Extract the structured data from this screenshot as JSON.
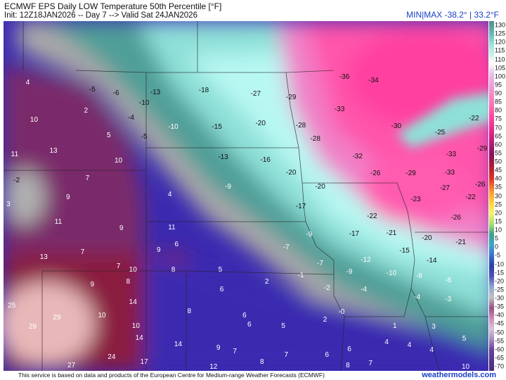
{
  "header": {
    "title": "ECMWF EPS Daily LOW Temperature 50th Percentile [°F]",
    "subtitle": "Init: 12Z18JAN2026 -- Day 7 --> Valid Sat 24JAN2026",
    "minmax": "MIN|MAX -38.2° | 33.2°F"
  },
  "footer": {
    "credit": "This service is based on data and products of the European Centre for Medium-range Weather Forecasts (ECMWF)",
    "site": "weathermodels.com"
  },
  "colorbar": {
    "ticks": [
      "130",
      "125",
      "120",
      "115",
      "110",
      "105",
      "100",
      "95",
      "90",
      "85",
      "80",
      "75",
      "70",
      "65",
      "60",
      "55",
      "50",
      "45",
      "40",
      "35",
      "30",
      "25",
      "20",
      "15",
      "10",
      "5",
      "0",
      "-5",
      "-10",
      "-15",
      "-20",
      "-25",
      "-30",
      "-35",
      "-40",
      "-45",
      "-50",
      "-55",
      "-60",
      "-65",
      "-70"
    ]
  },
  "colors": {
    "very_warm": "#f4d4d0",
    "warm": "#8a1a40",
    "mild": "#5a2a7a",
    "near_zero": "#3a2ab0",
    "cool": "#b0b0b0",
    "cold": "#60c0b8",
    "very_cold": "#a0f0ec",
    "frigid": "#ff60b0",
    "extreme": "#ff40a0"
  },
  "map_labels": [
    {
      "t": "4",
      "lx": 0.05,
      "ly": 0.178
    },
    {
      "t": "-5",
      "lx": 0.183,
      "ly": 0.197
    },
    {
      "t": "-6",
      "lx": 0.232,
      "ly": 0.207
    },
    {
      "t": "-13",
      "lx": 0.313,
      "ly": 0.205
    },
    {
      "t": "-18",
      "lx": 0.413,
      "ly": 0.199
    },
    {
      "t": "-27",
      "lx": 0.52,
      "ly": 0.209
    },
    {
      "t": "-29",
      "lx": 0.593,
      "ly": 0.219
    },
    {
      "t": "-36",
      "lx": 0.703,
      "ly": 0.161
    },
    {
      "t": "-34",
      "lx": 0.763,
      "ly": 0.171
    },
    {
      "t": "-10",
      "lx": 0.29,
      "ly": 0.236
    },
    {
      "t": "2",
      "lx": 0.17,
      "ly": 0.257
    },
    {
      "t": "-4",
      "lx": 0.263,
      "ly": 0.277
    },
    {
      "t": "10",
      "lx": 0.063,
      "ly": 0.284
    },
    {
      "t": "-33",
      "lx": 0.693,
      "ly": 0.254
    },
    {
      "t": "-10",
      "lx": 0.35,
      "ly": 0.303
    },
    {
      "t": "-15",
      "lx": 0.44,
      "ly": 0.303
    },
    {
      "t": "-20",
      "lx": 0.53,
      "ly": 0.293
    },
    {
      "t": "-28",
      "lx": 0.613,
      "ly": 0.299
    },
    {
      "t": "-30",
      "lx": 0.81,
      "ly": 0.302
    },
    {
      "t": "-25",
      "lx": 0.9,
      "ly": 0.32
    },
    {
      "t": "-22",
      "lx": 0.97,
      "ly": 0.28
    },
    {
      "t": "5",
      "lx": 0.217,
      "ly": 0.328
    },
    {
      "t": "-5",
      "lx": 0.29,
      "ly": 0.331
    },
    {
      "t": "-28",
      "lx": 0.643,
      "ly": 0.338
    },
    {
      "t": "11",
      "lx": 0.023,
      "ly": 0.383
    },
    {
      "t": "13",
      "lx": 0.103,
      "ly": 0.373
    },
    {
      "t": "10",
      "lx": 0.237,
      "ly": 0.401
    },
    {
      "t": "-13",
      "lx": 0.453,
      "ly": 0.391
    },
    {
      "t": "-16",
      "lx": 0.54,
      "ly": 0.399
    },
    {
      "t": "-32",
      "lx": 0.73,
      "ly": 0.389
    },
    {
      "t": "-33",
      "lx": 0.923,
      "ly": 0.383
    },
    {
      "t": "-29",
      "lx": 0.987,
      "ly": 0.366
    },
    {
      "t": "-2",
      "lx": 0.027,
      "ly": 0.457
    },
    {
      "t": "7",
      "lx": 0.173,
      "ly": 0.45
    },
    {
      "t": "-20",
      "lx": 0.593,
      "ly": 0.434
    },
    {
      "t": "-26",
      "lx": 0.767,
      "ly": 0.436
    },
    {
      "t": "-29",
      "lx": 0.84,
      "ly": 0.436
    },
    {
      "t": "-33",
      "lx": 0.92,
      "ly": 0.434
    },
    {
      "t": "-26",
      "lx": 0.983,
      "ly": 0.469
    },
    {
      "t": "9",
      "lx": 0.133,
      "ly": 0.506
    },
    {
      "t": "-9",
      "lx": 0.463,
      "ly": 0.474
    },
    {
      "t": "-20",
      "lx": 0.653,
      "ly": 0.474
    },
    {
      "t": "-27",
      "lx": 0.91,
      "ly": 0.479
    },
    {
      "t": "4",
      "lx": 0.343,
      "ly": 0.497
    },
    {
      "t": "3",
      "lx": 0.01,
      "ly": 0.526
    },
    {
      "t": "-22",
      "lx": 0.963,
      "ly": 0.505
    },
    {
      "t": "-23",
      "lx": 0.85,
      "ly": 0.512
    },
    {
      "t": "-17",
      "lx": 0.613,
      "ly": 0.531
    },
    {
      "t": "11",
      "lx": 0.113,
      "ly": 0.575
    },
    {
      "t": "9",
      "lx": 0.243,
      "ly": 0.594
    },
    {
      "t": "11",
      "lx": 0.347,
      "ly": 0.591
    },
    {
      "t": "-22",
      "lx": 0.76,
      "ly": 0.559
    },
    {
      "t": "-26",
      "lx": 0.933,
      "ly": 0.563
    },
    {
      "t": "-17",
      "lx": 0.723,
      "ly": 0.61
    },
    {
      "t": "-21",
      "lx": 0.8,
      "ly": 0.608
    },
    {
      "t": "-20",
      "lx": 0.873,
      "ly": 0.622
    },
    {
      "t": "-21",
      "lx": 0.943,
      "ly": 0.634
    },
    {
      "t": "9",
      "lx": 0.32,
      "ly": 0.656
    },
    {
      "t": "6",
      "lx": 0.357,
      "ly": 0.64
    },
    {
      "t": "7",
      "lx": 0.163,
      "ly": 0.662
    },
    {
      "t": "13",
      "lx": 0.083,
      "ly": 0.676
    },
    {
      "t": "-7",
      "lx": 0.583,
      "ly": 0.648
    },
    {
      "t": "-9",
      "lx": 0.63,
      "ly": 0.612
    },
    {
      "t": "-15",
      "lx": 0.827,
      "ly": 0.658
    },
    {
      "t": "-12",
      "lx": 0.747,
      "ly": 0.684
    },
    {
      "t": "-14",
      "lx": 0.883,
      "ly": 0.686
    },
    {
      "t": "7",
      "lx": 0.237,
      "ly": 0.702
    },
    {
      "t": "10",
      "lx": 0.267,
      "ly": 0.712
    },
    {
      "t": "8",
      "lx": 0.35,
      "ly": 0.712
    },
    {
      "t": "5",
      "lx": 0.447,
      "ly": 0.712
    },
    {
      "t": "-7",
      "lx": 0.653,
      "ly": 0.694
    },
    {
      "t": "-9",
      "lx": 0.713,
      "ly": 0.718
    },
    {
      "t": "-10",
      "lx": 0.8,
      "ly": 0.722
    },
    {
      "t": "-8",
      "lx": 0.857,
      "ly": 0.73
    },
    {
      "t": "-8",
      "lx": 0.917,
      "ly": 0.742
    },
    {
      "t": "-1",
      "lx": 0.613,
      "ly": 0.728
    },
    {
      "t": "9",
      "lx": 0.183,
      "ly": 0.754
    },
    {
      "t": "8",
      "lx": 0.257,
      "ly": 0.746
    },
    {
      "t": "2",
      "lx": 0.543,
      "ly": 0.746
    },
    {
      "t": "6",
      "lx": 0.45,
      "ly": 0.768
    },
    {
      "t": "-2",
      "lx": 0.667,
      "ly": 0.765
    },
    {
      "t": "-4",
      "lx": 0.743,
      "ly": 0.768
    },
    {
      "t": "-4",
      "lx": 0.853,
      "ly": 0.79
    },
    {
      "t": "-3",
      "lx": 0.917,
      "ly": 0.797
    },
    {
      "t": "14",
      "lx": 0.267,
      "ly": 0.805
    },
    {
      "t": "8",
      "lx": 0.383,
      "ly": 0.83
    },
    {
      "t": "10",
      "lx": 0.203,
      "ly": 0.843
    },
    {
      "t": "6",
      "lx": 0.497,
      "ly": 0.843
    },
    {
      "t": "-0",
      "lx": 0.697,
      "ly": 0.833
    },
    {
      "t": "2",
      "lx": 0.663,
      "ly": 0.855
    },
    {
      "t": "25",
      "lx": 0.017,
      "ly": 0.815
    },
    {
      "t": "29",
      "lx": 0.11,
      "ly": 0.85
    },
    {
      "t": "10",
      "lx": 0.273,
      "ly": 0.873
    },
    {
      "t": "6",
      "lx": 0.507,
      "ly": 0.87
    },
    {
      "t": "5",
      "lx": 0.577,
      "ly": 0.873
    },
    {
      "t": "1",
      "lx": 0.807,
      "ly": 0.873
    },
    {
      "t": "3",
      "lx": 0.887,
      "ly": 0.876
    },
    {
      "t": "29",
      "lx": 0.06,
      "ly": 0.876
    },
    {
      "t": "14",
      "lx": 0.28,
      "ly": 0.907
    },
    {
      "t": "14",
      "lx": 0.36,
      "ly": 0.925
    },
    {
      "t": "5",
      "lx": 0.95,
      "ly": 0.909
    },
    {
      "t": "4",
      "lx": 0.79,
      "ly": 0.919
    },
    {
      "t": "4",
      "lx": 0.837,
      "ly": 0.927
    },
    {
      "t": "9",
      "lx": 0.443,
      "ly": 0.935
    },
    {
      "t": "7",
      "lx": 0.477,
      "ly": 0.946
    },
    {
      "t": "7",
      "lx": 0.583,
      "ly": 0.956
    },
    {
      "t": "6",
      "lx": 0.667,
      "ly": 0.956
    },
    {
      "t": "6",
      "lx": 0.713,
      "ly": 0.939
    },
    {
      "t": "4",
      "lx": 0.883,
      "ly": 0.942
    },
    {
      "t": "24",
      "lx": 0.223,
      "ly": 0.962
    },
    {
      "t": "17",
      "lx": 0.29,
      "ly": 0.976
    },
    {
      "t": "8",
      "lx": 0.533,
      "ly": 0.976
    },
    {
      "t": "27",
      "lx": 0.14,
      "ly": 0.986
    },
    {
      "t": "12",
      "lx": 0.433,
      "ly": 0.99
    },
    {
      "t": "8",
      "lx": 0.71,
      "ly": 0.986
    },
    {
      "t": "7",
      "lx": 0.757,
      "ly": 0.98
    },
    {
      "t": "10",
      "lx": 0.953,
      "ly": 0.99
    }
  ]
}
